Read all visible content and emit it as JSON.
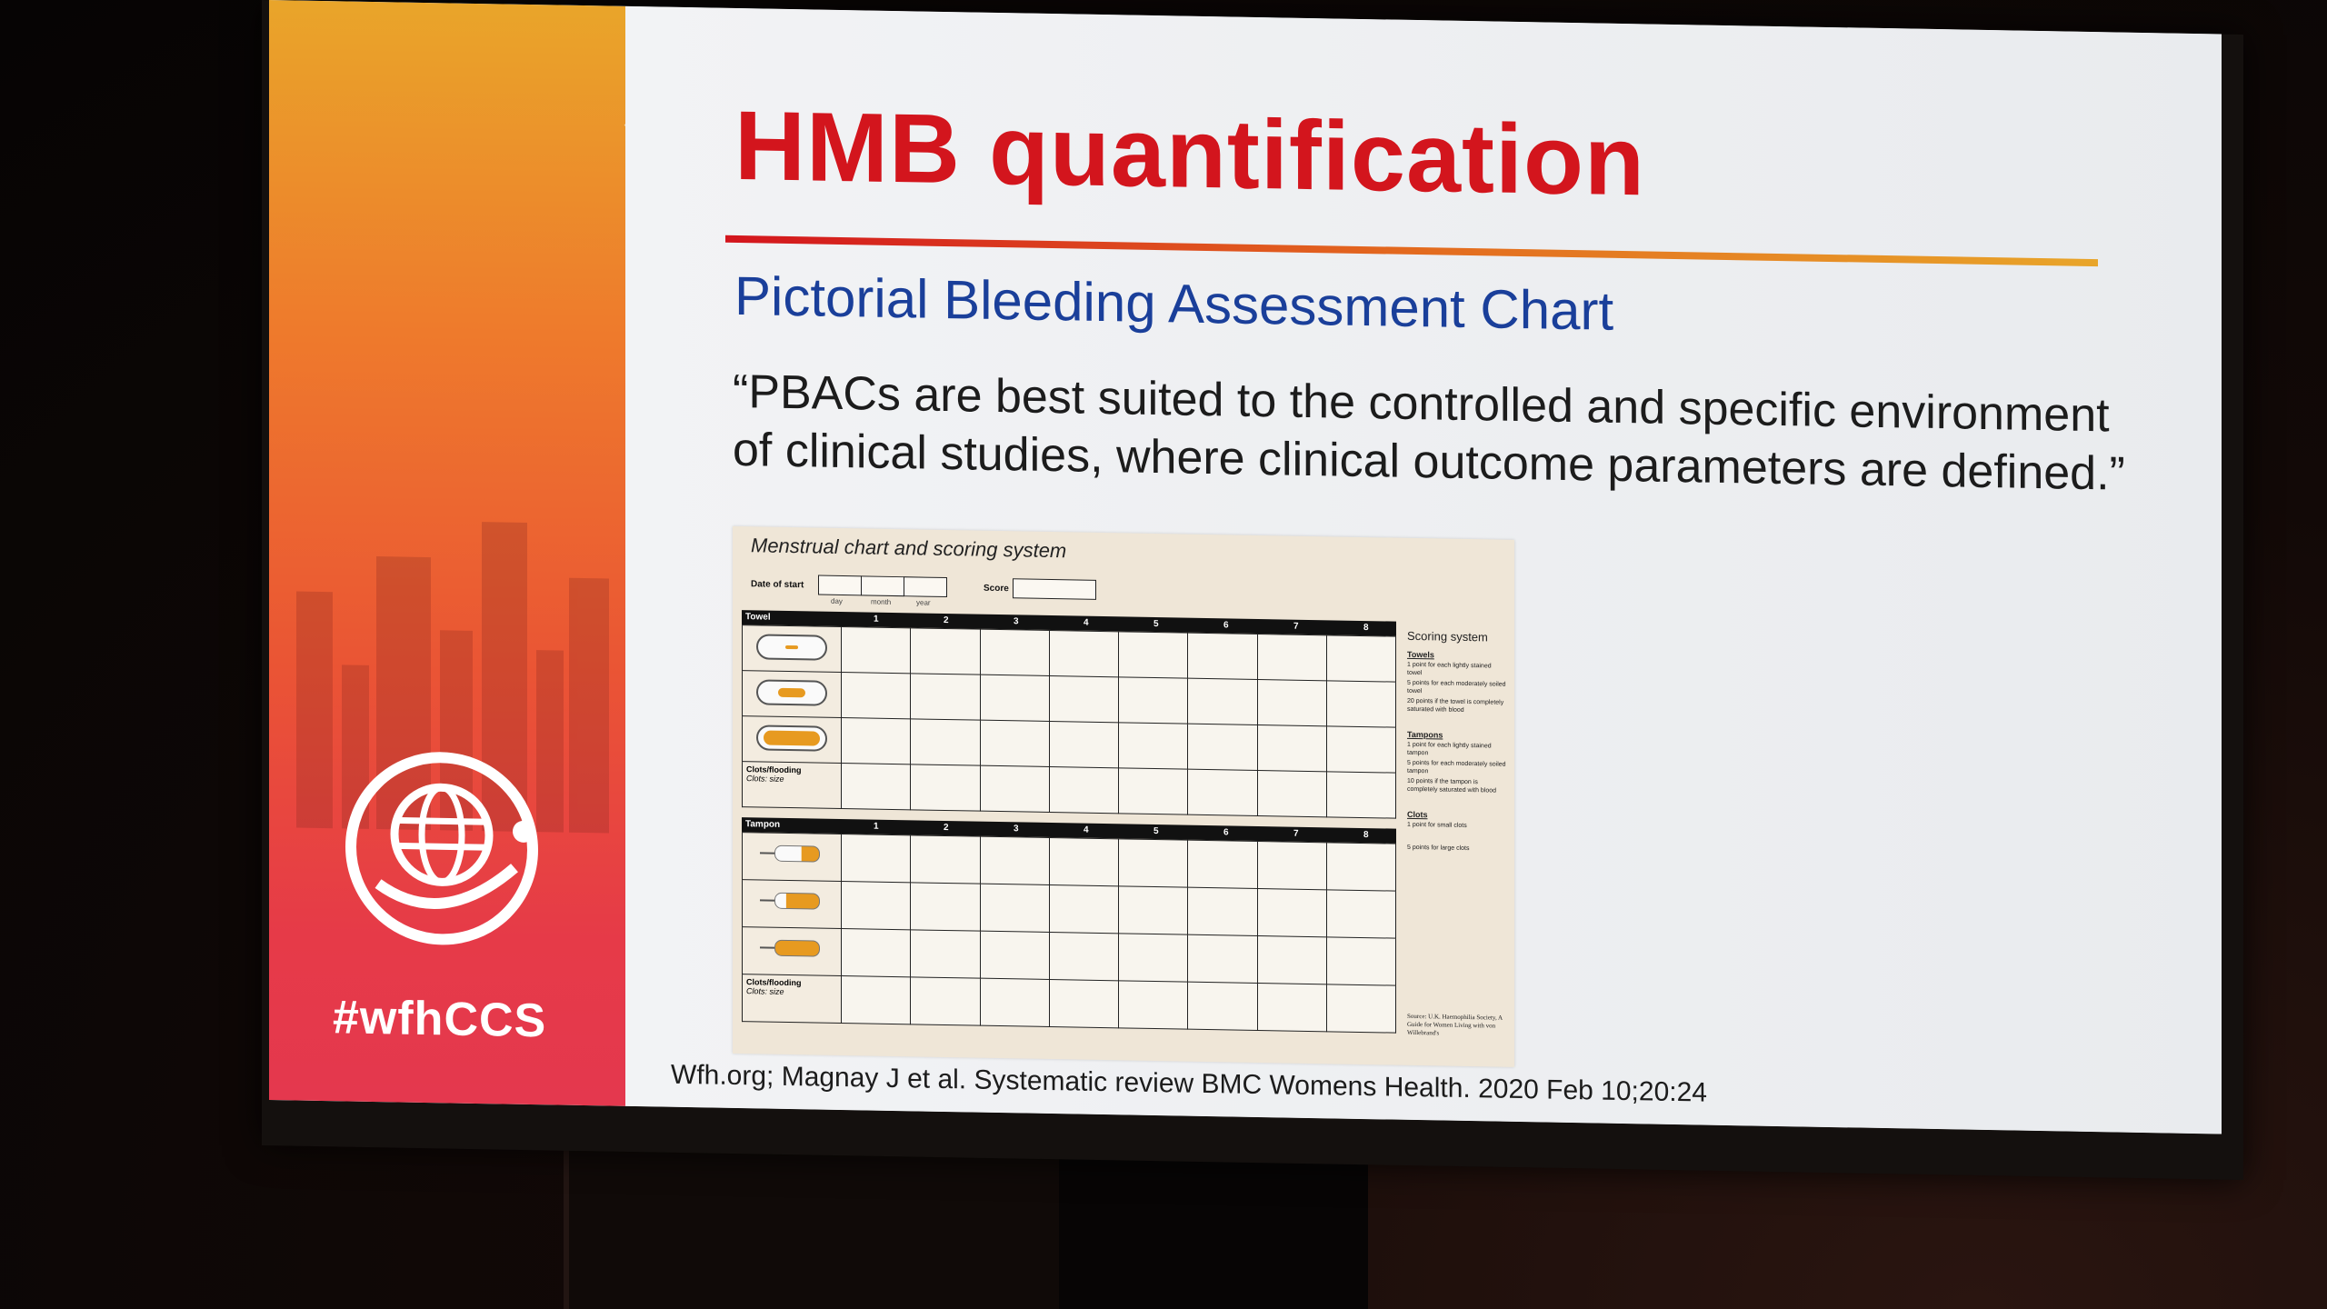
{
  "banner": {
    "hashtag": "#wfhCCS"
  },
  "slide": {
    "title": "HMB quantification",
    "subtitle": "Pictorial Bleeding Assessment Chart",
    "quote_line1": "“PBACs are best suited to the controlled and specific environment",
    "quote_line2": "of clinical studies, where clinical outcome parameters are defined.”",
    "reference": "Wfh.org; Magnay J et al. Systematic review BMC Womens Health. 2020 Feb 10;20:24"
  },
  "figure": {
    "title": "Menstrual chart and scoring system",
    "date_label": "Date of start",
    "day": "day",
    "month": "month",
    "year": "year",
    "score_label": "Score",
    "towel_header": "Towel",
    "tampon_header": "Tampon",
    "days": [
      "1",
      "2",
      "3",
      "4",
      "5",
      "6",
      "7",
      "8"
    ],
    "clots_label": "Clots/flooding",
    "clots_sub": "Clots: size",
    "scoring": {
      "heading": "Scoring system",
      "towels": "Towels",
      "towels_1": "1 point for each lightly stained towel",
      "towels_5": "5 points for each moderately soiled towel",
      "towels_20": "20 points if the towel is completely saturated with blood",
      "tampons": "Tampons",
      "tampons_1": "1 point for each lightly stained tampon",
      "tampons_5": "5 points for each moderately soiled tampon",
      "tampons_10": "10 points if the tampon is completely saturated with blood",
      "clots": "Clots",
      "clots_1": "1 point for small clots",
      "clots_5": "5 points for large clots"
    },
    "source": "Source: U.K. Haemophilia Society, A Guide for Women Living with von Willebrand's"
  },
  "colors": {
    "title_red": "#d3151d",
    "subtitle_blue": "#1a3f9a",
    "banner_orange": "#ee7a2c",
    "banner_red": "#e4384e"
  }
}
